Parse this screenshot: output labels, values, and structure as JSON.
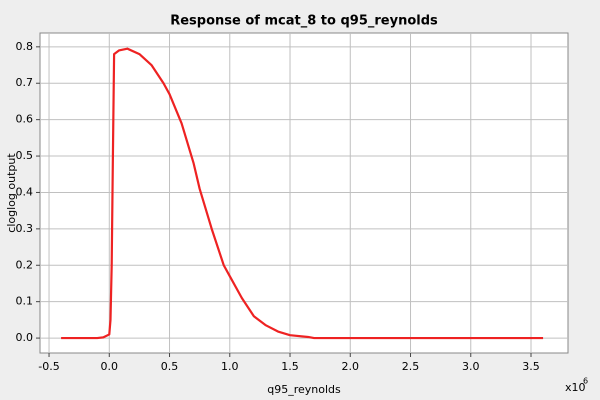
{
  "chart_data": {
    "type": "line",
    "title": "Response of mcat_8 to q95_reynolds",
    "x_label": "q95_reynolds",
    "y_label": "cloglog output",
    "x_multiplier": "x10",
    "x_exponent": "6",
    "x": [
      -0.4,
      -0.1,
      -0.05,
      0,
      0.01,
      0.02,
      0.03,
      0.04,
      0.08,
      0.15,
      0.25,
      0.35,
      0.45,
      0.5,
      0.6,
      0.7,
      0.75,
      0.85,
      0.95,
      1.0,
      1.1,
      1.2,
      1.3,
      1.4,
      1.5,
      1.65,
      1.7,
      2.0,
      3.0,
      3.6
    ],
    "series": [
      {
        "name": "mcat_8",
        "color": "#ee2222",
        "values": [
          0,
          0,
          0.002,
          0.01,
          0.05,
          0.2,
          0.5,
          0.78,
          0.79,
          0.795,
          0.78,
          0.75,
          0.7,
          0.67,
          0.59,
          0.48,
          0.41,
          0.3,
          0.2,
          0.17,
          0.11,
          0.06,
          0.035,
          0.018,
          0.008,
          0.003,
          0,
          0,
          0,
          0
        ]
      }
    ],
    "xlim": [
      -0.575,
      3.807
    ],
    "ylim": [
      -0.041,
      0.838
    ],
    "xticks": [
      -0.5,
      {
        "value": 0,
        "label": "0.0"
      },
      0.5,
      {
        "value": 1,
        "label": "1.0"
      },
      1.5,
      {
        "value": 2,
        "label": "2.0"
      },
      2.5,
      {
        "value": 3,
        "label": "3.0"
      },
      3.5
    ],
    "yticks": [
      {
        "value": 0,
        "label": "0.0"
      },
      0.1,
      0.2,
      0.3,
      0.4,
      0.5,
      0.6,
      0.7,
      0.8
    ],
    "grid": true
  }
}
